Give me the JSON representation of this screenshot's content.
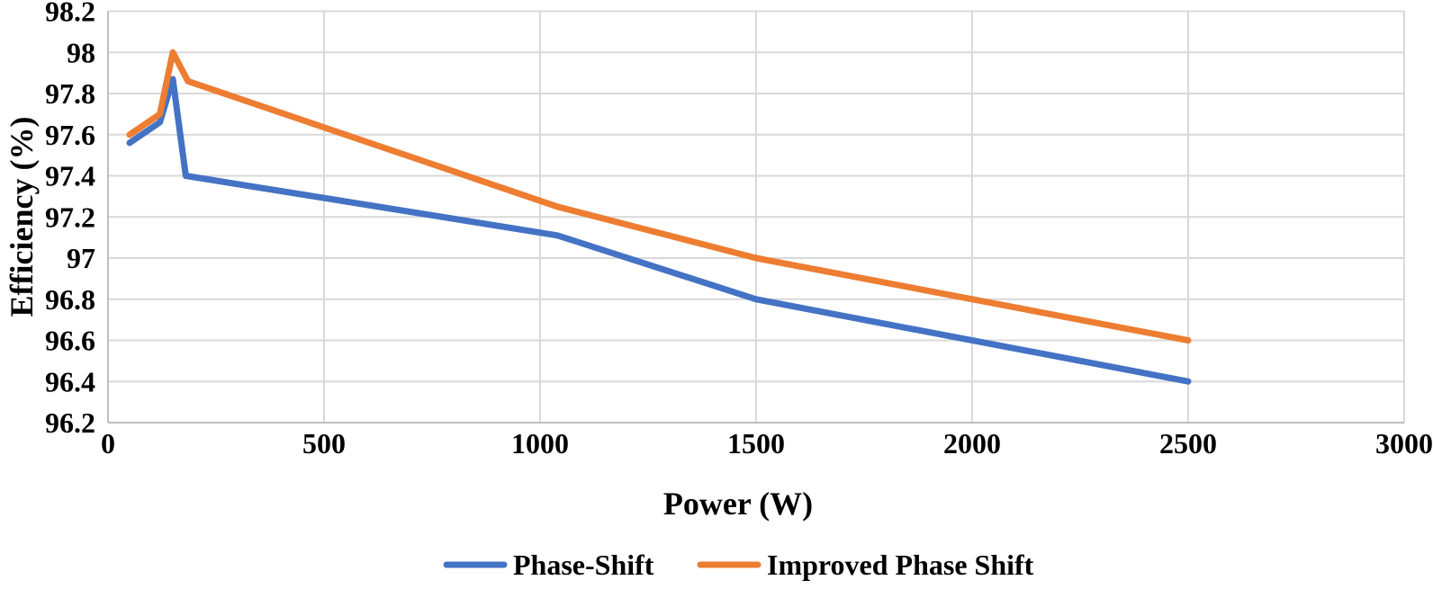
{
  "chart_data": {
    "type": "line",
    "title": "",
    "xlabel": "Power (W)",
    "ylabel": "Efficiency (%)",
    "xlim": [
      0,
      3000
    ],
    "ylim": [
      96.2,
      98.2
    ],
    "x_ticks": [
      0,
      500,
      1000,
      1500,
      2000,
      2500,
      3000
    ],
    "x_tick_labels": [
      "0",
      "500",
      "1000",
      "1500",
      "2000",
      "2500",
      "3000"
    ],
    "y_ticks": [
      96.2,
      96.4,
      96.6,
      96.8,
      97,
      97.2,
      97.4,
      97.6,
      97.8,
      98,
      98.2
    ],
    "y_tick_labels": [
      "96.2",
      "96.4",
      "96.6",
      "96.8",
      "97",
      "97.2",
      "97.4",
      "97.6",
      "97.8",
      "98",
      "98.2"
    ],
    "grid": true,
    "legend_position": "bottom",
    "colors": {
      "grid": "#D9D9D9",
      "axis": "#BFBFBF",
      "text": "#000000",
      "background": "#FFFFFF"
    },
    "series": [
      {
        "name": "Phase-Shift",
        "color": "#4472C4",
        "points": [
          [
            50,
            97.56
          ],
          [
            120,
            97.66
          ],
          [
            150,
            97.87
          ],
          [
            180,
            97.4
          ],
          [
            1040,
            97.11
          ],
          [
            1500,
            96.8
          ],
          [
            2500,
            96.4
          ]
        ]
      },
      {
        "name": "Improved Phase Shift",
        "color": "#ED7D31",
        "points": [
          [
            50,
            97.6
          ],
          [
            120,
            97.7
          ],
          [
            150,
            98.0
          ],
          [
            185,
            97.86
          ],
          [
            1040,
            97.25
          ],
          [
            1500,
            97.0
          ],
          [
            2500,
            96.6
          ]
        ]
      }
    ]
  }
}
